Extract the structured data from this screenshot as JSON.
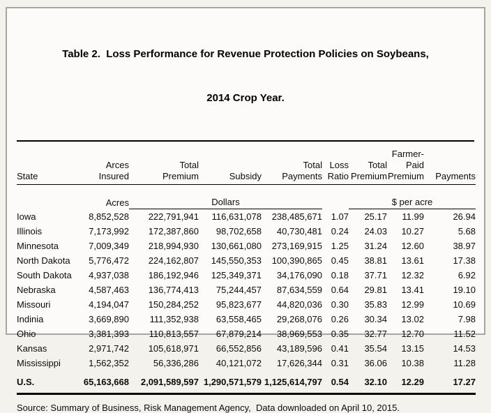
{
  "title": {
    "line1": "Table 2.  Loss Performance for Revenue Protection Policies on Soybeans,",
    "line2": "2014 Crop Year."
  },
  "table": {
    "columns": [
      {
        "key": "state",
        "lines": [
          "State"
        ]
      },
      {
        "key": "acres_insured",
        "lines": [
          "Arces",
          "Insured"
        ]
      },
      {
        "key": "total_premium",
        "lines": [
          "Total",
          "Premium"
        ]
      },
      {
        "key": "subsidy",
        "lines": [
          "Subsidy"
        ]
      },
      {
        "key": "total_payments",
        "lines": [
          "Total",
          "Payments"
        ]
      },
      {
        "key": "loss_ratio",
        "lines": [
          "Loss",
          "Ratio"
        ]
      },
      {
        "key": "total_premium_per_acre",
        "lines": [
          "Total",
          "Premium"
        ]
      },
      {
        "key": "farmer_paid_premium",
        "lines": [
          "Farmer-",
          "Paid",
          "Premium"
        ]
      },
      {
        "key": "payments_per_acre",
        "lines": [
          "Payments"
        ]
      }
    ],
    "units": {
      "acres": "Acres",
      "dollars": "Dollars",
      "per_acre": "$ per acre"
    },
    "rows": [
      [
        "Iowa",
        "8,852,528",
        "222,791,941",
        "116,631,078",
        "238,485,671",
        "1.07",
        "25.17",
        "11.99",
        "26.94"
      ],
      [
        "Illinois",
        "7,173,992",
        "172,387,860",
        "98,702,658",
        "40,730,481",
        "0.24",
        "24.03",
        "10.27",
        "5.68"
      ],
      [
        "Minnesota",
        "7,009,349",
        "218,994,930",
        "130,661,080",
        "273,169,915",
        "1.25",
        "31.24",
        "12.60",
        "38.97"
      ],
      [
        "North Dakota",
        "5,776,472",
        "224,162,807",
        "145,550,353",
        "100,390,865",
        "0.45",
        "38.81",
        "13.61",
        "17.38"
      ],
      [
        "South Dakota",
        "4,937,038",
        "186,192,946",
        "125,349,371",
        "34,176,090",
        "0.18",
        "37.71",
        "12.32",
        "6.92"
      ],
      [
        "Nebraska",
        "4,587,463",
        "136,774,413",
        "75,244,457",
        "87,634,559",
        "0.64",
        "29.81",
        "13.41",
        "19.10"
      ],
      [
        "Missouri",
        "4,194,047",
        "150,284,252",
        "95,823,677",
        "44,820,036",
        "0.30",
        "35.83",
        "12.99",
        "10.69"
      ],
      [
        "Indinia",
        "3,669,890",
        "111,352,938",
        "63,558,465",
        "29,268,076",
        "0.26",
        "30.34",
        "13.02",
        "7.98"
      ],
      [
        "Ohio",
        "3,381,393",
        "110,813,557",
        "67,879,214",
        "38,969,553",
        "0.35",
        "32.77",
        "12.70",
        "11.52"
      ],
      [
        "Kansas",
        "2,971,742",
        "105,618,971",
        "66,552,856",
        "43,189,596",
        "0.41",
        "35.54",
        "13.15",
        "14.53"
      ],
      [
        "Mississippi",
        "1,562,352",
        "56,336,286",
        "40,121,072",
        "17,626,344",
        "0.31",
        "36.06",
        "10.38",
        "11.28"
      ]
    ],
    "total_row": [
      "U.S.",
      "65,163,668",
      "2,091,589,597",
      "1,290,571,579",
      "1,125,614,797",
      "0.54",
      "32.10",
      "12.29",
      "17.27"
    ]
  },
  "source": "Source: Summary of Business, Risk Management Agency,  Data downloaded on April 10, 2015."
}
